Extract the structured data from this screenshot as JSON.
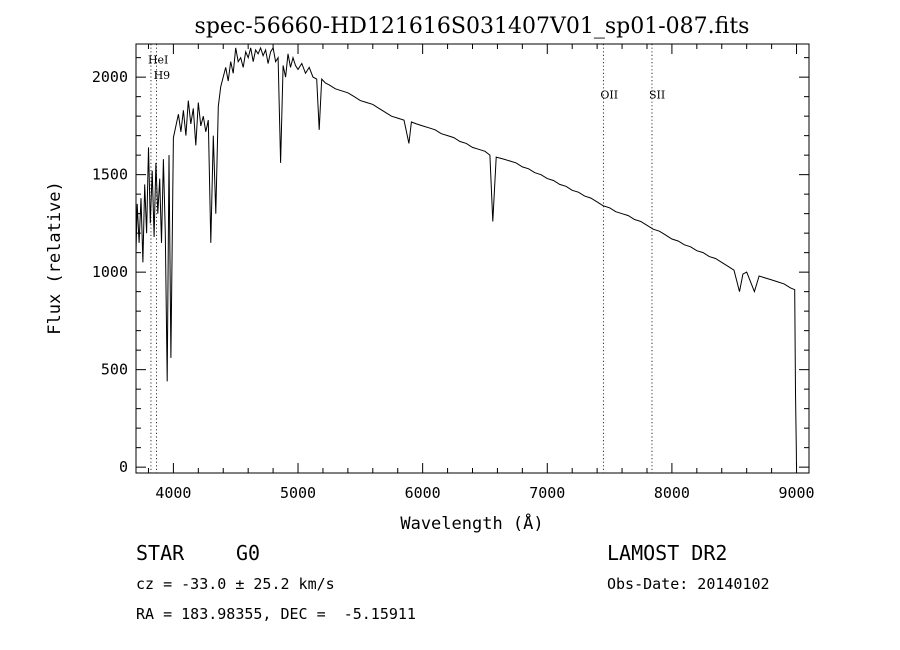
{
  "chart_data": {
    "type": "line",
    "title": "spec-56660-HD121616S031407V01_sp01-087.fits",
    "xlabel": "Wavelength (Å)",
    "ylabel": "Flux (relative)",
    "xlim": [
      3700,
      9100
    ],
    "ylim": [
      -30,
      2170
    ],
    "x_ticks": [
      4000,
      5000,
      6000,
      7000,
      8000,
      9000
    ],
    "y_ticks": [
      0,
      500,
      1000,
      1500,
      2000
    ],
    "grid": false,
    "line_color": "#000000",
    "series": [
      {
        "x": [
          3700,
          3710,
          3725,
          3740,
          3755,
          3770,
          3785,
          3800,
          3815,
          3830,
          3845,
          3860,
          3875,
          3890,
          3905,
          3920,
          3935,
          3950,
          3965,
          3980,
          4000,
          4020,
          4040,
          4060,
          4080,
          4100,
          4120,
          4140,
          4160,
          4180,
          4200,
          4220,
          4240,
          4260,
          4280,
          4300,
          4320,
          4340,
          4360,
          4380,
          4400,
          4420,
          4440,
          4460,
          4480,
          4500,
          4520,
          4540,
          4560,
          4580,
          4600,
          4620,
          4640,
          4660,
          4680,
          4700,
          4720,
          4740,
          4760,
          4780,
          4800,
          4820,
          4840,
          4860,
          4880,
          4900,
          4920,
          4940,
          4960,
          4980,
          5000,
          5030,
          5060,
          5090,
          5120,
          5150,
          5170,
          5190,
          5220,
          5250,
          5300,
          5350,
          5400,
          5450,
          5500,
          5550,
          5600,
          5650,
          5700,
          5750,
          5800,
          5850,
          5890,
          5910,
          5950,
          6000,
          6050,
          6100,
          6150,
          6200,
          6250,
          6300,
          6350,
          6400,
          6450,
          6500,
          6540,
          6563,
          6590,
          6650,
          6700,
          6750,
          6800,
          6850,
          6900,
          6950,
          7000,
          7050,
          7100,
          7150,
          7200,
          7250,
          7300,
          7350,
          7400,
          7450,
          7500,
          7550,
          7600,
          7650,
          7700,
          7750,
          7800,
          7850,
          7900,
          7950,
          8000,
          8050,
          8100,
          8150,
          8200,
          8250,
          8300,
          8350,
          8400,
          8450,
          8498,
          8542,
          8570,
          8600,
          8662,
          8700,
          8750,
          8800,
          8850,
          8900,
          8950,
          8985,
          8992,
          8998,
          9000
        ],
        "y": [
          1100,
          1350,
          1150,
          1380,
          1050,
          1450,
          1200,
          1640,
          1250,
          1520,
          1180,
          1560,
          1300,
          1480,
          1150,
          1580,
          1200,
          440,
          1600,
          560,
          1690,
          1750,
          1810,
          1720,
          1830,
          1700,
          1880,
          1760,
          1840,
          1650,
          1870,
          1750,
          1800,
          1720,
          1780,
          1150,
          1700,
          1300,
          1850,
          1950,
          2000,
          2050,
          1980,
          2080,
          2020,
          2150,
          2080,
          2100,
          2050,
          2130,
          2100,
          2150,
          2080,
          2140,
          2120,
          2150,
          2110,
          2140,
          2070,
          2130,
          2150,
          2080,
          2100,
          1560,
          2060,
          2000,
          2120,
          2050,
          2100,
          2060,
          2040,
          2070,
          2020,
          2050,
          2000,
          1990,
          1730,
          1990,
          1970,
          1960,
          1940,
          1930,
          1920,
          1900,
          1880,
          1870,
          1860,
          1840,
          1820,
          1800,
          1790,
          1780,
          1660,
          1770,
          1760,
          1750,
          1740,
          1730,
          1710,
          1700,
          1690,
          1670,
          1660,
          1640,
          1630,
          1620,
          1600,
          1260,
          1590,
          1580,
          1570,
          1560,
          1540,
          1530,
          1510,
          1500,
          1480,
          1470,
          1450,
          1440,
          1420,
          1410,
          1390,
          1380,
          1360,
          1340,
          1330,
          1310,
          1300,
          1290,
          1270,
          1260,
          1240,
          1220,
          1210,
          1190,
          1170,
          1160,
          1140,
          1130,
          1110,
          1100,
          1080,
          1070,
          1050,
          1030,
          1010,
          900,
          990,
          1000,
          900,
          980,
          970,
          960,
          950,
          940,
          920,
          910,
          380,
          100,
          0
        ]
      }
    ],
    "line_markers": [
      {
        "label": "HeI",
        "x": 3820,
        "label_y": 2070
      },
      {
        "label": "H9",
        "x": 3865,
        "label_y": 1990
      },
      {
        "label": "OII",
        "x": 7450,
        "label_y": 1890
      },
      {
        "label": "SII",
        "x": 7840,
        "label_y": 1890
      }
    ]
  },
  "info": {
    "object_class": "STAR",
    "subclass": "G0",
    "cz": "cz = -33.0 ± 25.2 km/s",
    "coords": "RA = 183.98355, DEC =  -5.15911",
    "survey": "LAMOST DR2",
    "obs_date": "Obs-Date: 20140102"
  }
}
